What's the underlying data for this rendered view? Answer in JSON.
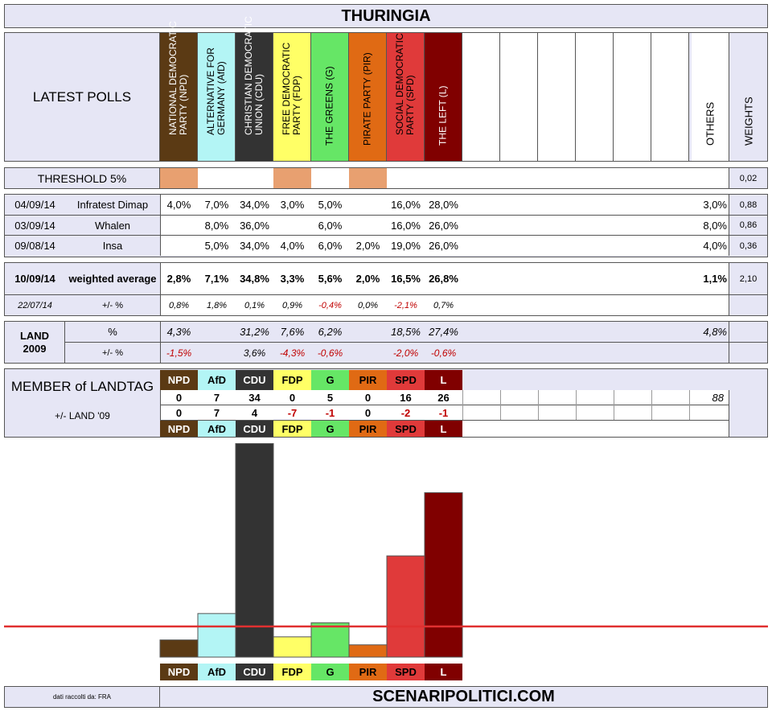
{
  "title": "THURINGIA",
  "latest_polls_label": "LATEST POLLS",
  "others_label": "OTHERS",
  "weights_label": "WEIGHTS",
  "threshold": {
    "label": "THRESHOLD 5%",
    "weight": "0,02"
  },
  "parties": [
    {
      "full": "NATIONAL DEMOCRATIC PARTY (NPD)",
      "short": "NPD",
      "color": "#5B3A14",
      "text_color": "#ffffff",
      "below_threshold": true
    },
    {
      "full": "ALTERNATIVE FOR GERMANY (AfD)",
      "short": "AfD",
      "color": "#B3F5F5",
      "text_color": "#000000",
      "below_threshold": false
    },
    {
      "full": "CHRISTIAN DEMOCRATIC UNION (CDU)",
      "short": "CDU",
      "color": "#333333",
      "text_color": "#ffffff",
      "below_threshold": false
    },
    {
      "full": "FREE DEMOCRATIC PARTY (FDP)",
      "short": "FDP",
      "color": "#FFFF66",
      "text_color": "#000000",
      "below_threshold": true
    },
    {
      "full": "THE GREENS (G)",
      "short": "G",
      "color": "#66E666",
      "text_color": "#000000",
      "below_threshold": false
    },
    {
      "full": "PIRATE PARTY (PIR)",
      "short": "PIR",
      "color": "#E06A14",
      "text_color": "#000000",
      "below_threshold": true
    },
    {
      "full": "SOCIAL DEMOCRATIC PARTY (SPD)",
      "short": "SPD",
      "color": "#E03A3A",
      "text_color": "#000000",
      "below_threshold": false
    },
    {
      "full": "THE LEFT (L)",
      "short": "L",
      "color": "#800000",
      "text_color": "#ffffff",
      "below_threshold": false
    }
  ],
  "polls": [
    {
      "date": "04/09/14",
      "institute": "Infratest Dimap",
      "values": [
        "4,0%",
        "7,0%",
        "34,0%",
        "3,0%",
        "5,0%",
        "",
        "16,0%",
        "28,0%"
      ],
      "others": "3,0%",
      "weight": "0,88"
    },
    {
      "date": "03/09/14",
      "institute": "Whalen",
      "values": [
        "",
        "8,0%",
        "36,0%",
        "",
        "6,0%",
        "",
        "16,0%",
        "26,0%"
      ],
      "others": "8,0%",
      "weight": "0,86"
    },
    {
      "date": "09/08/14",
      "institute": "Insa",
      "values": [
        "",
        "5,0%",
        "34,0%",
        "4,0%",
        "6,0%",
        "2,0%",
        "19,0%",
        "26,0%"
      ],
      "others": "4,0%",
      "weight": "0,36"
    }
  ],
  "weighted": {
    "date": "10/09/14",
    "label": "weighted average",
    "values": [
      "2,8%",
      "7,1%",
      "34,8%",
      "3,3%",
      "5,6%",
      "2,0%",
      "16,5%",
      "26,8%"
    ],
    "others": "1,1%",
    "weight": "2,10",
    "prev_date": "22/07/14",
    "delta_label": "+/- %",
    "deltas": [
      "0,8%",
      "1,8%",
      "0,1%",
      "0,9%",
      "-0,4%",
      "0,0%",
      "-2,1%",
      "0,7%"
    ]
  },
  "land": {
    "label": "LAND 2009",
    "pct_label": "%",
    "delta_label": "+/- %",
    "values": [
      "4,3%",
      "",
      "31,2%",
      "7,6%",
      "6,2%",
      "",
      "18,5%",
      "27,4%"
    ],
    "others": "4,8%",
    "deltas": [
      "-1,5%",
      "",
      "3,6%",
      "-4,3%",
      "-0,6%",
      "",
      "-2,0%",
      "-0,6%"
    ]
  },
  "landtag": {
    "label": "MEMBER of LANDTAG",
    "delta_label": "+/- LAND '09",
    "seats": [
      "0",
      "7",
      "34",
      "0",
      "5",
      "0",
      "16",
      "26"
    ],
    "total": "88",
    "deltas": [
      "0",
      "7",
      "4",
      "-7",
      "-1",
      "0",
      "-2",
      "-1"
    ]
  },
  "chart_data": {
    "type": "bar",
    "categories": [
      "NPD",
      "AfD",
      "CDU",
      "FDP",
      "G",
      "PIR",
      "SPD",
      "L"
    ],
    "values": [
      2.8,
      7.1,
      34.8,
      3.3,
      5.6,
      2.0,
      16.5,
      26.8
    ],
    "colors": [
      "#5B3A14",
      "#B3F5F5",
      "#333333",
      "#FFFF66",
      "#66E666",
      "#E06A14",
      "#E03A3A",
      "#800000"
    ],
    "threshold": 5,
    "threshold_color": "#E03030",
    "ylim": [
      0,
      35
    ],
    "grid": false,
    "legend": "none"
  },
  "footer": {
    "source": "dati raccolti da: FRA",
    "site": "SCENARIPOLITICI.COM"
  }
}
